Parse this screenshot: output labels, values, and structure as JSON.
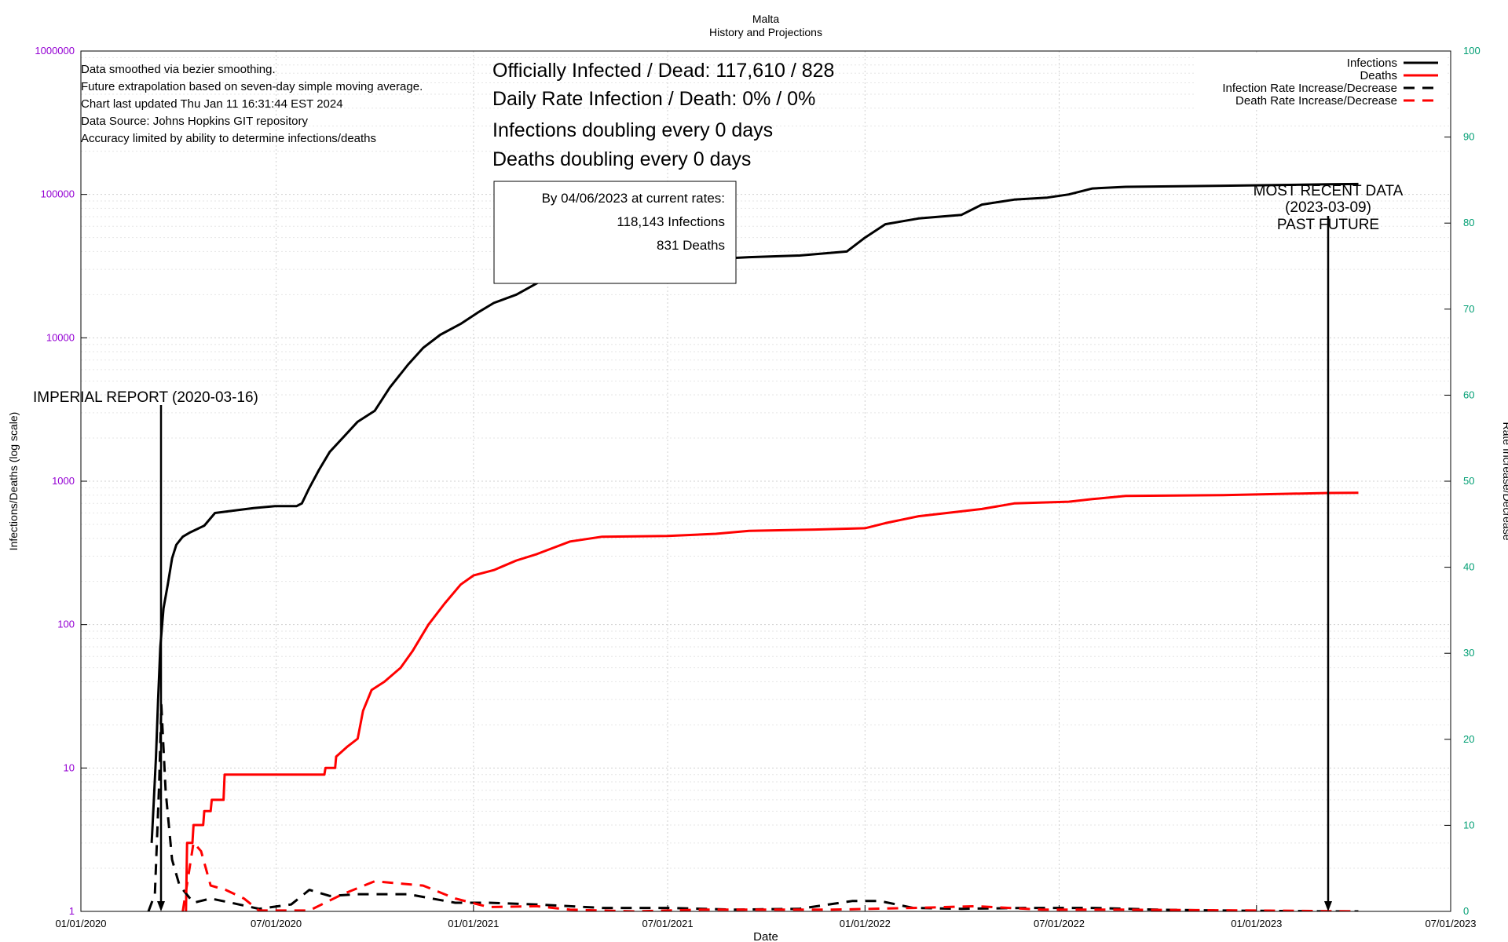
{
  "title": "Malta",
  "subtitle": "History and Projections",
  "notes": [
    "Data smoothed via bezier smoothing.",
    "Future extrapolation based on seven-day simple moving average.",
    "Chart last updated Thu Jan 11 16:31:44 EST 2024",
    "Data Source: Johns Hopkins GIT repository",
    "Accuracy limited by ability to determine infections/deaths"
  ],
  "stats": {
    "officially": "Officially Infected / Dead:  117,610 / 828",
    "daily_rate": "Daily Rate Infection / Death:  0% / 0%",
    "inf_doubling": "Infections doubling every 0 days",
    "death_doubling": "Deaths doubling every 0 days"
  },
  "projection": {
    "heading": "By 04/06/2023 at current rates:",
    "infections": "118,143 Infections",
    "deaths": "831 Deaths"
  },
  "annotations": {
    "imperial": "IMPERIAL REPORT (2020-03-16)",
    "recent_1": "MOST RECENT DATA",
    "recent_2": "(2023-03-09)",
    "recent_3": "PAST   FUTURE"
  },
  "colors": {
    "infections": "#000000",
    "deaths": "#ff0000",
    "left_axis": "#9400d3",
    "right_axis": "#009e73"
  },
  "chart_data": {
    "type": "line",
    "xlabel": "Date",
    "ylabel": "Infections/Deaths (log scale)",
    "y2label": "Rate Increase/Decrease",
    "yscale": "log",
    "ylim": [
      1,
      1000000
    ],
    "y2lim": [
      0,
      100
    ],
    "xlim": [
      "2020-01-01",
      "2023-07-01"
    ],
    "x_ticks": [
      "01/01/2020",
      "07/01/2020",
      "01/01/2021",
      "07/01/2021",
      "01/01/2022",
      "07/01/2022",
      "01/01/2023",
      "07/01/2023"
    ],
    "y_ticks": [
      "1",
      "10",
      "100",
      "1000",
      "10000",
      "100000",
      "1000000"
    ],
    "y2_ticks": [
      "0",
      "10",
      "20",
      "30",
      "40",
      "50",
      "60",
      "70",
      "80",
      "90",
      "100"
    ],
    "grid": true,
    "legend_position": "top-right",
    "series": [
      {
        "name": "Infections",
        "axis": "left",
        "style": "solid",
        "color": "#000000",
        "points": [
          [
            "2020-03-07",
            3
          ],
          [
            "2020-03-09",
            6
          ],
          [
            "2020-03-11",
            12
          ],
          [
            "2020-03-13",
            30
          ],
          [
            "2020-03-15",
            70
          ],
          [
            "2020-03-18",
            130
          ],
          [
            "2020-03-22",
            190
          ],
          [
            "2020-03-26",
            290
          ],
          [
            "2020-03-30",
            360
          ],
          [
            "2020-04-05",
            410
          ],
          [
            "2020-04-12",
            440
          ],
          [
            "2020-04-25",
            490
          ],
          [
            "2020-05-05",
            600
          ],
          [
            "2020-05-20",
            620
          ],
          [
            "2020-06-10",
            650
          ],
          [
            "2020-06-30",
            670
          ],
          [
            "2020-07-20",
            670
          ],
          [
            "2020-07-25",
            700
          ],
          [
            "2020-08-01",
            900
          ],
          [
            "2020-08-10",
            1200
          ],
          [
            "2020-08-20",
            1600
          ],
          [
            "2020-09-01",
            2000
          ],
          [
            "2020-09-15",
            2600
          ],
          [
            "2020-10-01",
            3100
          ],
          [
            "2020-10-15",
            4500
          ],
          [
            "2020-11-01",
            6500
          ],
          [
            "2020-11-15",
            8500
          ],
          [
            "2020-12-01",
            10500
          ],
          [
            "2020-12-20",
            12500
          ],
          [
            "2021-01-05",
            15000
          ],
          [
            "2021-01-20",
            17500
          ],
          [
            "2021-02-10",
            20000
          ],
          [
            "2021-03-01",
            24000
          ],
          [
            "2021-03-15",
            27500
          ],
          [
            "2021-04-01",
            29000
          ],
          [
            "2021-05-01",
            30000
          ],
          [
            "2021-06-01",
            30500
          ],
          [
            "2021-07-01",
            31000
          ],
          [
            "2021-07-20",
            34000
          ],
          [
            "2021-08-15",
            35500
          ],
          [
            "2021-09-15",
            36500
          ],
          [
            "2021-11-01",
            37500
          ],
          [
            "2021-12-15",
            40000
          ],
          [
            "2022-01-01",
            50000
          ],
          [
            "2022-01-20",
            62000
          ],
          [
            "2022-02-20",
            68000
          ],
          [
            "2022-04-01",
            72000
          ],
          [
            "2022-04-20",
            85000
          ],
          [
            "2022-05-20",
            92000
          ],
          [
            "2022-06-20",
            95000
          ],
          [
            "2022-07-10",
            100000
          ],
          [
            "2022-08-01",
            110000
          ],
          [
            "2022-09-01",
            113000
          ],
          [
            "2022-12-01",
            115000
          ],
          [
            "2023-03-09",
            117610
          ],
          [
            "2023-04-06",
            118143
          ]
        ]
      },
      {
        "name": "Deaths",
        "axis": "left",
        "style": "solid",
        "color": "#ff0000",
        "points": [
          [
            "2020-04-08",
            1
          ],
          [
            "2020-04-09",
            3
          ],
          [
            "2020-04-14",
            3
          ],
          [
            "2020-04-15",
            4
          ],
          [
            "2020-04-24",
            4
          ],
          [
            "2020-04-25",
            5
          ],
          [
            "2020-05-01",
            5
          ],
          [
            "2020-05-02",
            6
          ],
          [
            "2020-05-13",
            6
          ],
          [
            "2020-05-14",
            9
          ],
          [
            "2020-08-15",
            9
          ],
          [
            "2020-08-16",
            10
          ],
          [
            "2020-08-25",
            10
          ],
          [
            "2020-08-26",
            12
          ],
          [
            "2020-09-05",
            14
          ],
          [
            "2020-09-15",
            16
          ],
          [
            "2020-09-20",
            25
          ],
          [
            "2020-09-28",
            35
          ],
          [
            "2020-10-10",
            40
          ],
          [
            "2020-10-25",
            50
          ],
          [
            "2020-11-05",
            65
          ],
          [
            "2020-11-20",
            100
          ],
          [
            "2020-12-05",
            140
          ],
          [
            "2020-12-20",
            190
          ],
          [
            "2021-01-01",
            220
          ],
          [
            "2021-01-20",
            240
          ],
          [
            "2021-02-10",
            280
          ],
          [
            "2021-03-01",
            310
          ],
          [
            "2021-03-15",
            340
          ],
          [
            "2021-04-01",
            380
          ],
          [
            "2021-05-01",
            410
          ],
          [
            "2021-07-01",
            415
          ],
          [
            "2021-08-15",
            430
          ],
          [
            "2021-09-15",
            450
          ],
          [
            "2021-11-15",
            460
          ],
          [
            "2022-01-01",
            470
          ],
          [
            "2022-01-20",
            510
          ],
          [
            "2022-02-20",
            570
          ],
          [
            "2022-04-20",
            640
          ],
          [
            "2022-05-20",
            700
          ],
          [
            "2022-07-10",
            720
          ],
          [
            "2022-08-01",
            750
          ],
          [
            "2022-09-01",
            790
          ],
          [
            "2022-12-01",
            800
          ],
          [
            "2023-03-09",
            828
          ],
          [
            "2023-04-06",
            831
          ]
        ]
      },
      {
        "name": "Infection Rate Increase/Decrease",
        "axis": "right",
        "style": "dashed",
        "color": "#000000",
        "points": [
          [
            "2020-03-04",
            0
          ],
          [
            "2020-03-10",
            2
          ],
          [
            "2020-03-14",
            15
          ],
          [
            "2020-03-16",
            24
          ],
          [
            "2020-03-20",
            14
          ],
          [
            "2020-03-26",
            6
          ],
          [
            "2020-04-02",
            3
          ],
          [
            "2020-04-15",
            1
          ],
          [
            "2020-05-01",
            1.5
          ],
          [
            "2020-05-20",
            1
          ],
          [
            "2020-06-15",
            0.3
          ],
          [
            "2020-07-15",
            0.8
          ],
          [
            "2020-08-01",
            2.5
          ],
          [
            "2020-08-20",
            1.8
          ],
          [
            "2020-09-15",
            2
          ],
          [
            "2020-11-01",
            2
          ],
          [
            "2020-12-15",
            1
          ],
          [
            "2021-01-15",
            1
          ],
          [
            "2021-03-01",
            0.8
          ],
          [
            "2021-05-01",
            0.4
          ],
          [
            "2021-07-01",
            0.4
          ],
          [
            "2021-09-01",
            0.2
          ],
          [
            "2021-11-01",
            0.3
          ],
          [
            "2021-12-20",
            1.2
          ],
          [
            "2022-01-15",
            1.2
          ],
          [
            "2022-02-15",
            0.4
          ],
          [
            "2022-04-01",
            0.3
          ],
          [
            "2022-06-01",
            0.4
          ],
          [
            "2022-08-01",
            0.4
          ],
          [
            "2022-10-01",
            0.2
          ],
          [
            "2022-12-01",
            0.1
          ],
          [
            "2023-03-09",
            0
          ],
          [
            "2023-04-06",
            0
          ]
        ]
      },
      {
        "name": "Death Rate Increase/Decrease",
        "axis": "right",
        "style": "dashed",
        "color": "#ff0000",
        "points": [
          [
            "2020-04-05",
            0
          ],
          [
            "2020-04-10",
            4
          ],
          [
            "2020-04-15",
            8
          ],
          [
            "2020-04-22",
            7
          ],
          [
            "2020-05-01",
            3
          ],
          [
            "2020-05-15",
            2.5
          ],
          [
            "2020-06-01",
            1.5
          ],
          [
            "2020-06-15",
            0.1
          ],
          [
            "2020-08-01",
            0.1
          ],
          [
            "2020-09-01",
            2
          ],
          [
            "2020-10-01",
            3.5
          ],
          [
            "2020-11-15",
            3
          ],
          [
            "2020-12-15",
            1.5
          ],
          [
            "2021-01-15",
            0.5
          ],
          [
            "2021-03-01",
            0.6
          ],
          [
            "2021-04-01",
            0.2
          ],
          [
            "2021-06-01",
            0
          ],
          [
            "2021-08-01",
            0.2
          ],
          [
            "2021-12-01",
            0.2
          ],
          [
            "2022-02-15",
            0.4
          ],
          [
            "2022-04-15",
            0.6
          ],
          [
            "2022-06-15",
            0.2
          ],
          [
            "2022-09-01",
            0.2
          ],
          [
            "2023-01-01",
            0.1
          ],
          [
            "2023-04-06",
            0
          ]
        ]
      }
    ]
  }
}
